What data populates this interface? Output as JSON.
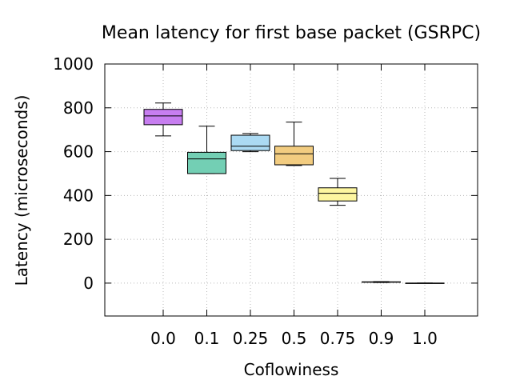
{
  "chart_data": {
    "type": "box",
    "title": "Mean latency for first base packet (GSRPC)",
    "xlabel": "Coflowiness",
    "ylabel": "Latency (microseconds)",
    "ylim": [
      -150,
      1000
    ],
    "yticks": [
      0,
      200,
      400,
      600,
      800,
      1000
    ],
    "grid": true,
    "categories": [
      "0.0",
      "0.1",
      "0.25",
      "0.5",
      "0.75",
      "0.9",
      "1.0"
    ],
    "boxes": [
      {
        "category": "0.0",
        "min": 672,
        "q1": 723,
        "median": 763,
        "q3": 793,
        "max": 822,
        "color": "#c77ef0"
      },
      {
        "category": "0.1",
        "min": 500,
        "q1": 500,
        "median": 567,
        "q3": 597,
        "max": 716,
        "color": "#73cfb4"
      },
      {
        "category": "0.25",
        "min": 600,
        "q1": 605,
        "median": 625,
        "q3": 675,
        "max": 683,
        "color": "#abdaf3"
      },
      {
        "category": "0.5",
        "min": 537,
        "q1": 540,
        "median": 590,
        "q3": 625,
        "max": 735,
        "color": "#f2cc80"
      },
      {
        "category": "0.75",
        "min": 355,
        "q1": 375,
        "median": 410,
        "q3": 435,
        "max": 478,
        "color": "#fdf6a0"
      },
      {
        "category": "0.9",
        "min": 3,
        "q1": 4,
        "median": 5,
        "q3": 6,
        "max": 7,
        "color": "#ffffff"
      },
      {
        "category": "1.0",
        "min": 0,
        "q1": 0,
        "median": 0,
        "q3": 0,
        "max": 0,
        "color": "#ffffff"
      }
    ]
  }
}
